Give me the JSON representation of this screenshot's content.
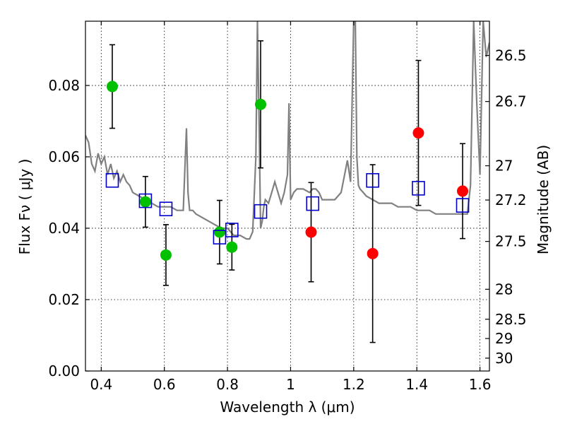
{
  "chart_data": {
    "type": "scatter",
    "xlabel": "Wavelength  λ (μm)",
    "ylabel": "Flux  Fν  ( μJy )",
    "y2label": "Magnitude (AB)",
    "xlim": [
      0.35,
      1.63
    ],
    "ylim": [
      0.0,
      0.098
    ],
    "grid": true,
    "x_ticks": [
      {
        "value": 0.4,
        "label": "0.4"
      },
      {
        "value": 0.6,
        "label": "0.6"
      },
      {
        "value": 0.8,
        "label": "0.8"
      },
      {
        "value": 1.0,
        "label": "1"
      },
      {
        "value": 1.2,
        "label": "1.2"
      },
      {
        "value": 1.4,
        "label": "1.4"
      },
      {
        "value": 1.6,
        "label": "1.6"
      }
    ],
    "y_ticks": [
      {
        "value": 0.0,
        "label": "0.00"
      },
      {
        "value": 0.02,
        "label": "0.02"
      },
      {
        "value": 0.04,
        "label": "0.04"
      },
      {
        "value": 0.06,
        "label": "0.06"
      },
      {
        "value": 0.08,
        "label": "0.08"
      }
    ],
    "y2_ticks": [
      {
        "flux": 0.0884,
        "label": "26.5"
      },
      {
        "flux": 0.0755,
        "label": "26.7"
      },
      {
        "flux": 0.0575,
        "label": "27"
      },
      {
        "flux": 0.0479,
        "label": "27.2"
      },
      {
        "flux": 0.0363,
        "label": "27.5"
      },
      {
        "flux": 0.0229,
        "label": "28"
      },
      {
        "flux": 0.0145,
        "label": "28.5"
      },
      {
        "flux": 0.0091,
        "label": "29"
      },
      {
        "flux": 0.0036,
        "label": "30"
      }
    ],
    "series": [
      {
        "marker": "circle",
        "color": "#00c000",
        "points": [
          {
            "x": 0.435,
            "y": 0.0797,
            "err": 0.0117
          },
          {
            "x": 0.54,
            "y": 0.0474,
            "err": 0.0071
          },
          {
            "x": 0.605,
            "y": 0.0325,
            "err": 0.0085
          },
          {
            "x": 0.775,
            "y": 0.0389,
            "err": 0.0089
          },
          {
            "x": 0.814,
            "y": 0.0347,
            "err": 0.0064
          },
          {
            "x": 0.905,
            "y": 0.0747,
            "err": 0.0178
          }
        ]
      },
      {
        "marker": "circle",
        "color": "#ff0000",
        "points": [
          {
            "x": 1.065,
            "y": 0.0389,
            "err": 0.0139
          },
          {
            "x": 1.26,
            "y": 0.0329,
            "err": 0.0249
          },
          {
            "x": 1.405,
            "y": 0.0667,
            "err": 0.0203
          },
          {
            "x": 1.545,
            "y": 0.0504,
            "err": 0.0133
          }
        ]
      },
      {
        "marker": "square-open",
        "color": "#0000cc",
        "points": [
          {
            "x": 0.435,
            "y": 0.0534
          },
          {
            "x": 0.54,
            "y": 0.0477
          },
          {
            "x": 0.605,
            "y": 0.0454
          },
          {
            "x": 0.775,
            "y": 0.0375
          },
          {
            "x": 0.814,
            "y": 0.0395
          },
          {
            "x": 0.905,
            "y": 0.0447
          },
          {
            "x": 1.07,
            "y": 0.0469
          },
          {
            "x": 1.26,
            "y": 0.0534
          },
          {
            "x": 1.405,
            "y": 0.0512
          },
          {
            "x": 1.545,
            "y": 0.0464
          }
        ]
      },
      {
        "type": "line",
        "color": "#808080",
        "x": [
          0.35,
          0.36,
          0.37,
          0.38,
          0.39,
          0.4,
          0.41,
          0.42,
          0.43,
          0.44,
          0.45,
          0.46,
          0.47,
          0.48,
          0.49,
          0.5,
          0.52,
          0.54,
          0.56,
          0.58,
          0.6,
          0.62,
          0.64,
          0.66,
          0.67,
          0.675,
          0.68,
          0.69,
          0.7,
          0.72,
          0.74,
          0.76,
          0.78,
          0.8,
          0.82,
          0.84,
          0.86,
          0.87,
          0.88,
          0.89,
          0.895,
          0.9,
          0.905,
          0.91,
          0.915,
          0.92,
          0.93,
          0.94,
          0.95,
          0.96,
          0.97,
          0.98,
          0.99,
          0.995,
          1.0,
          1.005,
          1.01,
          1.02,
          1.04,
          1.06,
          1.07,
          1.08,
          1.09,
          1.1,
          1.12,
          1.14,
          1.16,
          1.18,
          1.19,
          1.2,
          1.205,
          1.21,
          1.215,
          1.22,
          1.23,
          1.24,
          1.26,
          1.28,
          1.3,
          1.32,
          1.34,
          1.36,
          1.38,
          1.4,
          1.42,
          1.44,
          1.46,
          1.48,
          1.5,
          1.52,
          1.54,
          1.56,
          1.57,
          1.58,
          1.59,
          1.6,
          1.61,
          1.62,
          1.63
        ],
        "y": [
          0.066,
          0.064,
          0.058,
          0.056,
          0.061,
          0.058,
          0.06,
          0.055,
          0.058,
          0.054,
          0.056,
          0.053,
          0.055,
          0.053,
          0.052,
          0.05,
          0.049,
          0.048,
          0.047,
          0.046,
          0.046,
          0.046,
          0.045,
          0.045,
          0.068,
          0.05,
          0.045,
          0.045,
          0.044,
          0.043,
          0.042,
          0.041,
          0.04,
          0.04,
          0.038,
          0.038,
          0.037,
          0.037,
          0.039,
          0.06,
          0.098,
          0.07,
          0.04,
          0.042,
          0.046,
          0.048,
          0.047,
          0.05,
          0.053,
          0.05,
          0.047,
          0.05,
          0.055,
          0.075,
          0.048,
          0.049,
          0.05,
          0.051,
          0.051,
          0.05,
          0.051,
          0.051,
          0.05,
          0.048,
          0.048,
          0.048,
          0.05,
          0.059,
          0.053,
          0.098,
          0.098,
          0.06,
          0.052,
          0.051,
          0.05,
          0.049,
          0.048,
          0.047,
          0.047,
          0.047,
          0.046,
          0.046,
          0.046,
          0.045,
          0.045,
          0.045,
          0.044,
          0.044,
          0.044,
          0.044,
          0.044,
          0.044,
          0.052,
          0.098,
          0.075,
          0.055,
          0.098,
          0.088,
          0.092
        ]
      }
    ]
  }
}
